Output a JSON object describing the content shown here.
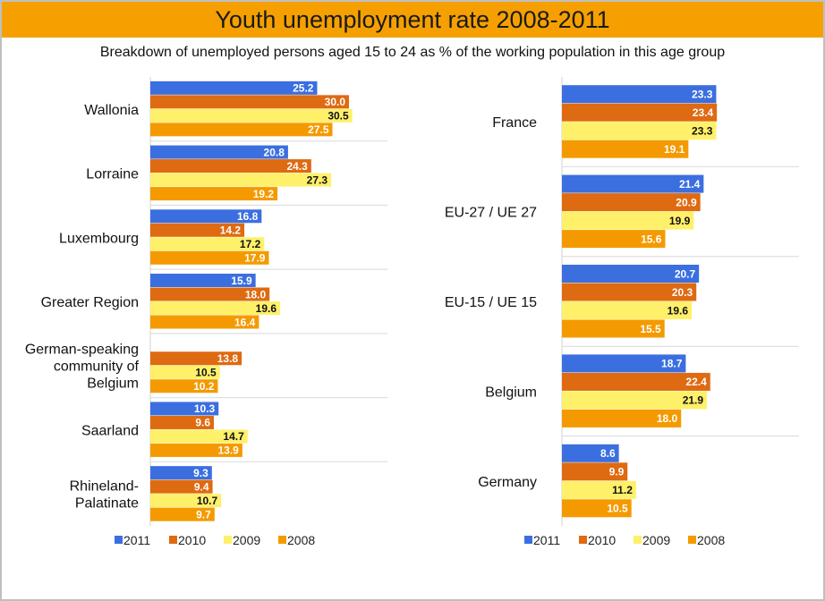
{
  "title": "Youth unemployment rate 2008-2011",
  "subtitle": "Breakdown of unemployed persons aged 15 to 24 as % of the working population in this age group",
  "colors": {
    "2011": "#3b6fe0",
    "2010": "#de6a12",
    "2009": "#fff06a",
    "2008": "#f49a00"
  },
  "chart_data": [
    {
      "type": "bar",
      "orientation": "horizontal",
      "legend_position": "bottom",
      "series_order": [
        "2011",
        "2010",
        "2009",
        "2008"
      ],
      "categories": [
        {
          "name": "Wallonia",
          "values": {
            "2011": 25.2,
            "2010": 30.0,
            "2009": 30.5,
            "2008": 27.5
          }
        },
        {
          "name": "Lorraine",
          "values": {
            "2011": 20.8,
            "2010": 24.3,
            "2009": 27.3,
            "2008": 19.2
          }
        },
        {
          "name": "Luxembourg",
          "values": {
            "2011": 16.8,
            "2010": 14.2,
            "2009": 17.2,
            "2008": 17.9
          }
        },
        {
          "name": "Greater Region",
          "values": {
            "2011": 15.9,
            "2010": 18.0,
            "2009": 19.6,
            "2008": 16.4
          }
        },
        {
          "name": "German-speaking community of Belgium",
          "values": {
            "2010": 13.8,
            "2009": 10.5,
            "2008": 10.2
          }
        },
        {
          "name": "Saarland",
          "values": {
            "2011": 10.3,
            "2010": 9.6,
            "2009": 14.7,
            "2008": 13.9
          }
        },
        {
          "name": "Rhineland-Palatinate",
          "values": {
            "2011": 9.3,
            "2010": 9.4,
            "2009": 10.7,
            "2008": 9.7
          }
        }
      ],
      "series": [
        {
          "name": "2011"
        },
        {
          "name": "2010"
        },
        {
          "name": "2009"
        },
        {
          "name": "2008"
        }
      ]
    },
    {
      "type": "bar",
      "orientation": "horizontal",
      "legend_position": "bottom",
      "series_order": [
        "2011",
        "2010",
        "2009",
        "2008"
      ],
      "categories": [
        {
          "name": "France",
          "values": {
            "2011": 23.3,
            "2010": 23.4,
            "2009": 23.3,
            "2008": 19.1
          }
        },
        {
          "name": "EU-27 / UE 27",
          "values": {
            "2011": 21.4,
            "2010": 20.9,
            "2009": 19.9,
            "2008": 15.6
          }
        },
        {
          "name": "EU-15 / UE 15",
          "values": {
            "2011": 20.7,
            "2010": 20.3,
            "2009": 19.6,
            "2008": 15.5
          }
        },
        {
          "name": "Belgium",
          "values": {
            "2011": 18.7,
            "2010": 22.4,
            "2009": 21.9,
            "2008": 18.0
          }
        },
        {
          "name": "Germany",
          "values": {
            "2011": 8.6,
            "2010": 9.9,
            "2009": 11.2,
            "2008": 10.5
          }
        }
      ],
      "series": [
        {
          "name": "2011"
        },
        {
          "name": "2010"
        },
        {
          "name": "2009"
        },
        {
          "name": "2008"
        }
      ]
    }
  ]
}
